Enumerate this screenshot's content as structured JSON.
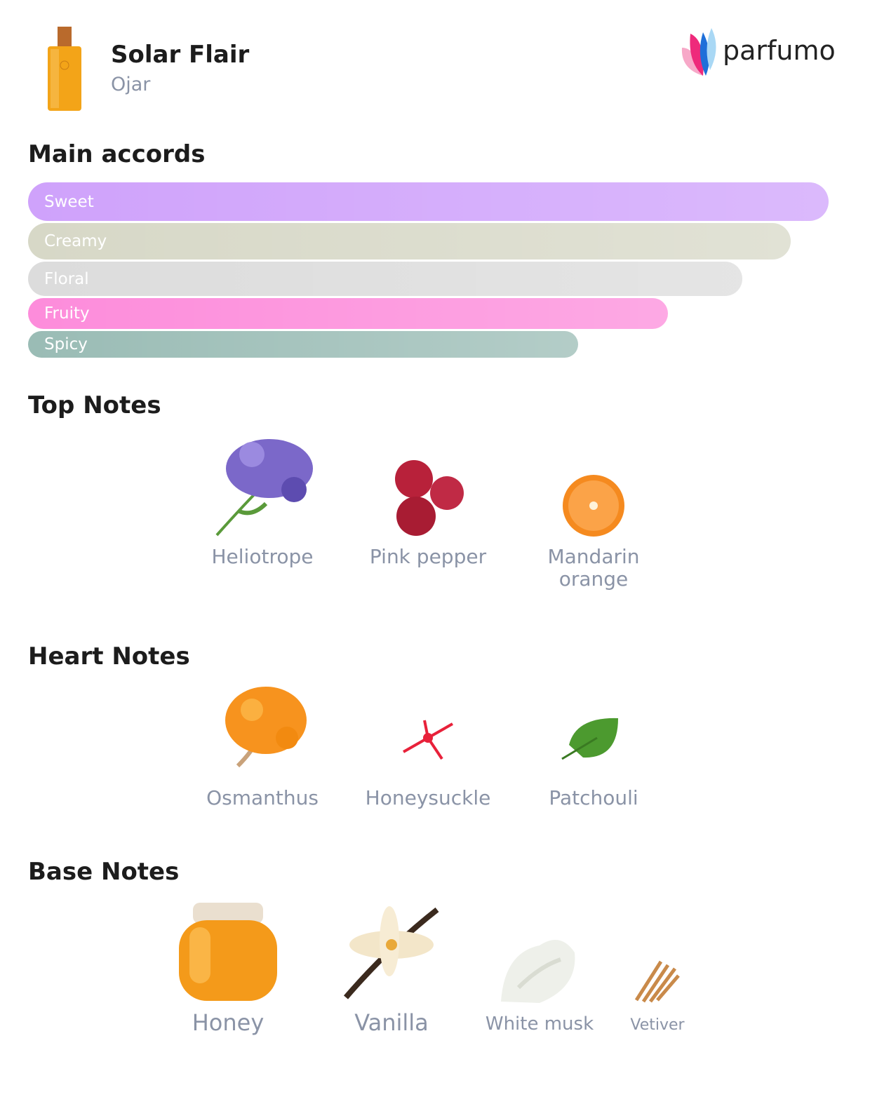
{
  "header": {
    "title": "Solar Flair",
    "brand": "Ojar",
    "logo": "parfumo"
  },
  "accords": {
    "title": "Main accords",
    "items": [
      {
        "name": "Sweet",
        "strength": 100,
        "color": "#cfa2fb"
      },
      {
        "name": "Creamy",
        "strength": 95.3,
        "color": "#d7d8c7"
      },
      {
        "name": "Floral",
        "strength": 89.2,
        "color": "#dcdcdc"
      },
      {
        "name": "Fruity",
        "strength": 79.9,
        "color": "#fd8cdb"
      },
      {
        "name": "Spicy",
        "strength": 68.7,
        "color": "#9abcb5"
      }
    ]
  },
  "top_notes": {
    "title": "Top Notes",
    "notes": [
      "Heliotrope",
      "Pink pepper",
      "Mandarin orange"
    ]
  },
  "heart_notes": {
    "title": "Heart Notes",
    "notes": [
      "Osmanthus",
      "Honeysuckle",
      "Patchouli"
    ]
  },
  "base_notes": {
    "title": "Base Notes",
    "notes": [
      "Honey",
      "Vanilla",
      "White musk",
      "Vetiver"
    ]
  }
}
